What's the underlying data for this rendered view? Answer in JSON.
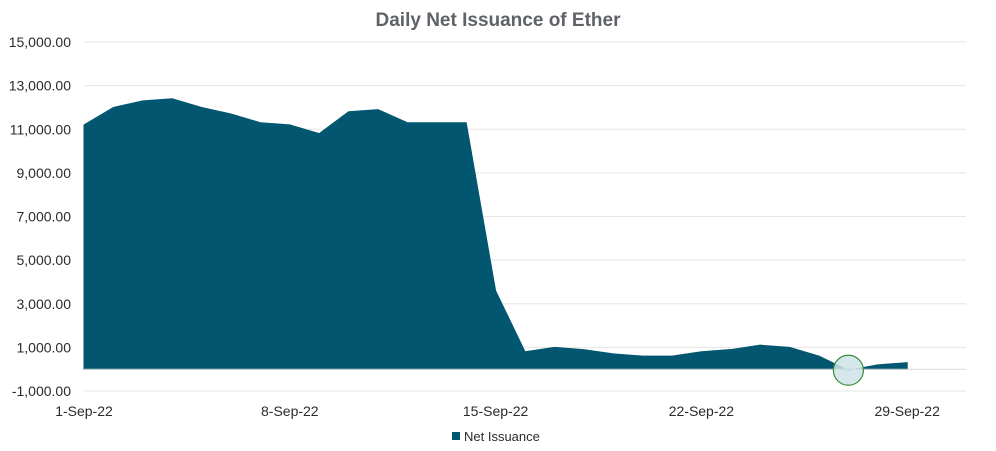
{
  "chart_data": {
    "type": "area",
    "title": "Daily Net Issuance of Ether",
    "xlabel": "",
    "ylabel": "",
    "ylim": [
      -1000,
      15000
    ],
    "yticks": [
      -1000,
      1000,
      3000,
      5000,
      7000,
      9000,
      11000,
      13000,
      15000
    ],
    "ytick_labels": [
      "-1,000.00",
      "1,000.00",
      "3,000.00",
      "5,000.00",
      "7,000.00",
      "9,000.00",
      "11,000.00",
      "13,000.00",
      "15,000.00"
    ],
    "x_tick_labels": [
      "1-Sep-22",
      "8-Sep-22",
      "15-Sep-22",
      "22-Sep-22",
      "29-Sep-22"
    ],
    "x": [
      "1-Sep-22",
      "2-Sep-22",
      "3-Sep-22",
      "4-Sep-22",
      "5-Sep-22",
      "6-Sep-22",
      "7-Sep-22",
      "8-Sep-22",
      "9-Sep-22",
      "10-Sep-22",
      "11-Sep-22",
      "12-Sep-22",
      "13-Sep-22",
      "14-Sep-22",
      "15-Sep-22",
      "16-Sep-22",
      "17-Sep-22",
      "18-Sep-22",
      "19-Sep-22",
      "20-Sep-22",
      "21-Sep-22",
      "22-Sep-22",
      "23-Sep-22",
      "24-Sep-22",
      "25-Sep-22",
      "26-Sep-22",
      "27-Sep-22",
      "28-Sep-22",
      "29-Sep-22"
    ],
    "series": [
      {
        "name": "Net Issuance",
        "color": "#025670",
        "values": [
          11200,
          12000,
          12300,
          12400,
          12000,
          11700,
          11300,
          11200,
          10800,
          11800,
          11900,
          11300,
          11300,
          11300,
          3600,
          800,
          1000,
          900,
          700,
          600,
          600,
          800,
          900,
          1100,
          1000,
          600,
          -50,
          200,
          300
        ]
      }
    ],
    "legend_position": "bottom",
    "grid": true,
    "annotation": {
      "type": "circle-highlight",
      "x": "27-Sep-22",
      "y": -50
    }
  }
}
